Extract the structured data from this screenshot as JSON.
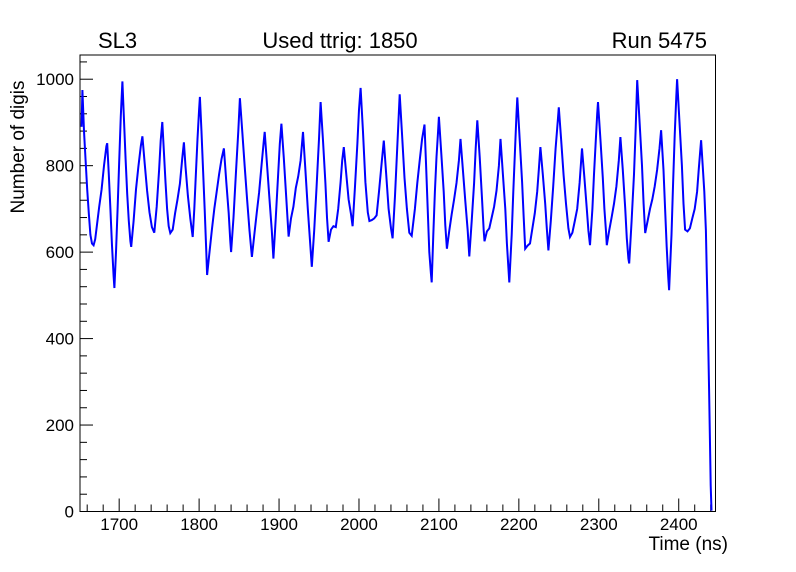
{
  "titles": {
    "left": "SL3",
    "center": "Used ttrig: 1850",
    "right": "Run 5475"
  },
  "chart_data": {
    "type": "line",
    "title": "Used ttrig: 1850",
    "pad_label_left": "SL3",
    "pad_label_right": "Run 5475",
    "xlabel": "Time (ns)",
    "ylabel": "Number of digis",
    "xlim": [
      1651,
      2446
    ],
    "ylim": [
      0,
      1056
    ],
    "x_major_ticks": [
      1700,
      1800,
      1900,
      2000,
      2100,
      2200,
      2300,
      2400
    ],
    "x_minor_step": 20,
    "y_major_ticks": [
      0,
      200,
      400,
      600,
      800,
      1000
    ],
    "y_minor_step": 40,
    "line_color": "#0000ff",
    "frame_color": "#000000",
    "background_color": "#ffffff",
    "legend": "none",
    "grid": false,
    "points": [
      [
        1653,
        890
      ],
      [
        1654,
        975
      ],
      [
        1656,
        880
      ],
      [
        1658,
        812
      ],
      [
        1660,
        745
      ],
      [
        1662,
        690
      ],
      [
        1664,
        640
      ],
      [
        1666,
        620
      ],
      [
        1668,
        616
      ],
      [
        1670,
        630
      ],
      [
        1672,
        660
      ],
      [
        1675,
        705
      ],
      [
        1678,
        745
      ],
      [
        1681,
        800
      ],
      [
        1684,
        845
      ],
      [
        1685,
        852
      ],
      [
        1687,
        780
      ],
      [
        1689,
        700
      ],
      [
        1691,
        615
      ],
      [
        1693,
        545
      ],
      [
        1694,
        517
      ],
      [
        1696,
        600
      ],
      [
        1698,
        700
      ],
      [
        1700,
        810
      ],
      [
        1702,
        915
      ],
      [
        1704,
        995
      ],
      [
        1706,
        905
      ],
      [
        1708,
        815
      ],
      [
        1710,
        735
      ],
      [
        1712,
        672
      ],
      [
        1714,
        625
      ],
      [
        1715,
        612
      ],
      [
        1718,
        672
      ],
      [
        1721,
        745
      ],
      [
        1724,
        798
      ],
      [
        1727,
        845
      ],
      [
        1729,
        868
      ],
      [
        1732,
        805
      ],
      [
        1735,
        742
      ],
      [
        1738,
        692
      ],
      [
        1741,
        658
      ],
      [
        1744,
        645
      ],
      [
        1747,
        705
      ],
      [
        1750,
        790
      ],
      [
        1752,
        858
      ],
      [
        1754,
        901
      ],
      [
        1756,
        832
      ],
      [
        1758,
        762
      ],
      [
        1760,
        700
      ],
      [
        1762,
        660
      ],
      [
        1764,
        644
      ],
      [
        1767,
        652
      ],
      [
        1770,
        690
      ],
      [
        1773,
        722
      ],
      [
        1776,
        758
      ],
      [
        1779,
        818
      ],
      [
        1781,
        854
      ],
      [
        1783,
        798
      ],
      [
        1786,
        730
      ],
      [
        1789,
        678
      ],
      [
        1792,
        635
      ],
      [
        1794,
        700
      ],
      [
        1796,
        782
      ],
      [
        1798,
        862
      ],
      [
        1800,
        930
      ],
      [
        1801,
        959
      ],
      [
        1803,
        878
      ],
      [
        1805,
        788
      ],
      [
        1807,
        698
      ],
      [
        1809,
        600
      ],
      [
        1810,
        547
      ],
      [
        1813,
        600
      ],
      [
        1816,
        652
      ],
      [
        1819,
        700
      ],
      [
        1822,
        740
      ],
      [
        1825,
        780
      ],
      [
        1828,
        815
      ],
      [
        1831,
        840
      ],
      [
        1834,
        762
      ],
      [
        1837,
        690
      ],
      [
        1839,
        625
      ],
      [
        1840,
        600
      ],
      [
        1843,
        680
      ],
      [
        1846,
        782
      ],
      [
        1849,
        880
      ],
      [
        1851,
        956
      ],
      [
        1854,
        878
      ],
      [
        1857,
        798
      ],
      [
        1860,
        722
      ],
      [
        1863,
        650
      ],
      [
        1866,
        589
      ],
      [
        1869,
        640
      ],
      [
        1872,
        690
      ],
      [
        1875,
        738
      ],
      [
        1878,
        800
      ],
      [
        1881,
        860
      ],
      [
        1882,
        878
      ],
      [
        1885,
        800
      ],
      [
        1888,
        722
      ],
      [
        1891,
        650
      ],
      [
        1893,
        585
      ],
      [
        1896,
        680
      ],
      [
        1899,
        782
      ],
      [
        1901,
        850
      ],
      [
        1903,
        897
      ],
      [
        1906,
        818
      ],
      [
        1909,
        728
      ],
      [
        1912,
        636
      ],
      [
        1915,
        678
      ],
      [
        1918,
        705
      ],
      [
        1921,
        748
      ],
      [
        1924,
        775
      ],
      [
        1927,
        812
      ],
      [
        1930,
        878
      ],
      [
        1933,
        790
      ],
      [
        1936,
        700
      ],
      [
        1939,
        620
      ],
      [
        1941,
        566
      ],
      [
        1944,
        650
      ],
      [
        1947,
        752
      ],
      [
        1950,
        862
      ],
      [
        1952,
        947
      ],
      [
        1955,
        858
      ],
      [
        1958,
        760
      ],
      [
        1960,
        680
      ],
      [
        1962,
        624
      ],
      [
        1965,
        652
      ],
      [
        1968,
        660
      ],
      [
        1971,
        658
      ],
      [
        1974,
        700
      ],
      [
        1977,
        762
      ],
      [
        1979,
        812
      ],
      [
        1981,
        843
      ],
      [
        1984,
        782
      ],
      [
        1987,
        722
      ],
      [
        1990,
        688
      ],
      [
        1992,
        660
      ],
      [
        1995,
        752
      ],
      [
        1998,
        852
      ],
      [
        2000,
        930
      ],
      [
        2002,
        980
      ],
      [
        2005,
        878
      ],
      [
        2008,
        762
      ],
      [
        2011,
        692
      ],
      [
        2013,
        672
      ],
      [
        2016,
        674
      ],
      [
        2019,
        678
      ],
      [
        2022,
        685
      ],
      [
        2025,
        740
      ],
      [
        2028,
        800
      ],
      [
        2031,
        858
      ],
      [
        2034,
        780
      ],
      [
        2037,
        700
      ],
      [
        2040,
        655
      ],
      [
        2042,
        632
      ],
      [
        2045,
        730
      ],
      [
        2048,
        850
      ],
      [
        2051,
        965
      ],
      [
        2054,
        870
      ],
      [
        2057,
        772
      ],
      [
        2060,
        700
      ],
      [
        2063,
        645
      ],
      [
        2066,
        638
      ],
      [
        2070,
        700
      ],
      [
        2073,
        760
      ],
      [
        2076,
        812
      ],
      [
        2079,
        862
      ],
      [
        2082,
        895
      ],
      [
        2084,
        800
      ],
      [
        2086,
        700
      ],
      [
        2088,
        600
      ],
      [
        2090,
        551
      ],
      [
        2091,
        530
      ],
      [
        2093,
        640
      ],
      [
        2095,
        740
      ],
      [
        2097,
        820
      ],
      [
        2099,
        880
      ],
      [
        2100,
        913
      ],
      [
        2103,
        828
      ],
      [
        2106,
        740
      ],
      [
        2108,
        662
      ],
      [
        2110,
        608
      ],
      [
        2113,
        650
      ],
      [
        2116,
        688
      ],
      [
        2119,
        722
      ],
      [
        2122,
        760
      ],
      [
        2125,
        812
      ],
      [
        2127,
        862
      ],
      [
        2130,
        790
      ],
      [
        2133,
        718
      ],
      [
        2136,
        650
      ],
      [
        2138,
        590
      ],
      [
        2141,
        672
      ],
      [
        2144,
        760
      ],
      [
        2146,
        840
      ],
      [
        2148,
        905
      ],
      [
        2151,
        820
      ],
      [
        2154,
        720
      ],
      [
        2156,
        650
      ],
      [
        2157,
        625
      ],
      [
        2160,
        648
      ],
      [
        2163,
        655
      ],
      [
        2166,
        680
      ],
      [
        2169,
        705
      ],
      [
        2172,
        742
      ],
      [
        2175,
        800
      ],
      [
        2177,
        862
      ],
      [
        2180,
        780
      ],
      [
        2183,
        700
      ],
      [
        2185,
        620
      ],
      [
        2187,
        560
      ],
      [
        2188,
        530
      ],
      [
        2191,
        640
      ],
      [
        2193,
        740
      ],
      [
        2195,
        830
      ],
      [
        2197,
        920
      ],
      [
        2198,
        958
      ],
      [
        2201,
        860
      ],
      [
        2204,
        762
      ],
      [
        2206,
        680
      ],
      [
        2208,
        608
      ],
      [
        2211,
        615
      ],
      [
        2214,
        620
      ],
      [
        2217,
        655
      ],
      [
        2220,
        690
      ],
      [
        2223,
        740
      ],
      [
        2225,
        790
      ],
      [
        2227,
        843
      ],
      [
        2230,
        780
      ],
      [
        2233,
        712
      ],
      [
        2235,
        655
      ],
      [
        2237,
        604
      ],
      [
        2240,
        672
      ],
      [
        2243,
        752
      ],
      [
        2246,
        840
      ],
      [
        2249,
        910
      ],
      [
        2250,
        935
      ],
      [
        2253,
        858
      ],
      [
        2256,
        778
      ],
      [
        2259,
        712
      ],
      [
        2262,
        655
      ],
      [
        2264,
        635
      ],
      [
        2267,
        645
      ],
      [
        2270,
        672
      ],
      [
        2273,
        700
      ],
      [
        2276,
        760
      ],
      [
        2279,
        840
      ],
      [
        2282,
        772
      ],
      [
        2285,
        700
      ],
      [
        2287,
        650
      ],
      [
        2289,
        616
      ],
      [
        2292,
        700
      ],
      [
        2294,
        780
      ],
      [
        2296,
        850
      ],
      [
        2298,
        920
      ],
      [
        2299,
        947
      ],
      [
        2302,
        862
      ],
      [
        2305,
        772
      ],
      [
        2307,
        700
      ],
      [
        2309,
        648
      ],
      [
        2310,
        616
      ],
      [
        2313,
        650
      ],
      [
        2316,
        680
      ],
      [
        2319,
        712
      ],
      [
        2322,
        752
      ],
      [
        2325,
        812
      ],
      [
        2327,
        866
      ],
      [
        2330,
        790
      ],
      [
        2333,
        702
      ],
      [
        2335,
        632
      ],
      [
        2337,
        585
      ],
      [
        2338,
        574
      ],
      [
        2341,
        672
      ],
      [
        2344,
        780
      ],
      [
        2346,
        880
      ],
      [
        2348,
        998
      ],
      [
        2351,
        900
      ],
      [
        2354,
        800
      ],
      [
        2356,
        712
      ],
      [
        2358,
        644
      ],
      [
        2361,
        672
      ],
      [
        2364,
        700
      ],
      [
        2367,
        722
      ],
      [
        2370,
        752
      ],
      [
        2373,
        790
      ],
      [
        2376,
        840
      ],
      [
        2378,
        882
      ],
      [
        2381,
        790
      ],
      [
        2383,
        700
      ],
      [
        2385,
        612
      ],
      [
        2387,
        540
      ],
      [
        2388,
        512
      ],
      [
        2391,
        640
      ],
      [
        2393,
        760
      ],
      [
        2395,
        870
      ],
      [
        2397,
        960
      ],
      [
        2398,
        1000
      ],
      [
        2401,
        900
      ],
      [
        2404,
        800
      ],
      [
        2406,
        712
      ],
      [
        2408,
        652
      ],
      [
        2411,
        648
      ],
      [
        2414,
        655
      ],
      [
        2417,
        678
      ],
      [
        2420,
        700
      ],
      [
        2423,
        740
      ],
      [
        2425,
        790
      ],
      [
        2428,
        859
      ],
      [
        2430,
        800
      ],
      [
        2432,
        740
      ],
      [
        2434,
        650
      ],
      [
        2435,
        560
      ],
      [
        2436,
        480
      ],
      [
        2437,
        380
      ],
      [
        2438,
        280
      ],
      [
        2439,
        170
      ],
      [
        2440,
        60
      ],
      [
        2441,
        2
      ]
    ]
  }
}
